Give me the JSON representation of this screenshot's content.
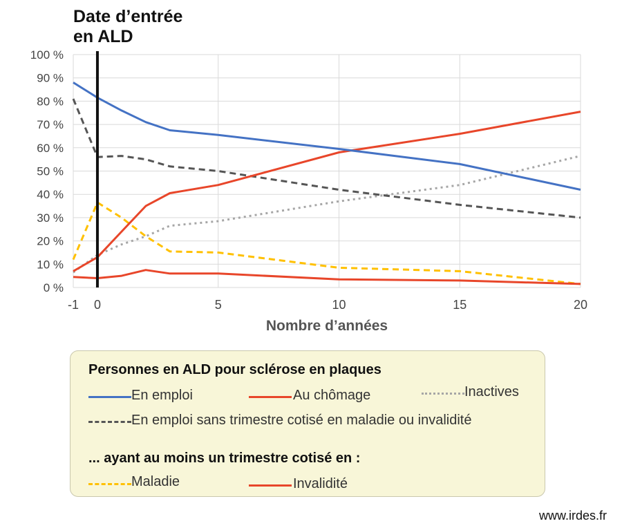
{
  "annotation": {
    "line1": "Date d’entrée",
    "line2": "en ALD"
  },
  "footer": "www.irdes.fr",
  "chart_data": {
    "type": "line",
    "xlabel": "Nombre d’années",
    "ylabel": "",
    "xlim": [
      -1,
      20
    ],
    "ylim": [
      0,
      100
    ],
    "x_ticks": [
      "-1",
      "0",
      "5",
      "10",
      "15",
      "20"
    ],
    "x_tick_values": [
      -1,
      0,
      5,
      10,
      15,
      20
    ],
    "y_ticks": [
      "0 %",
      "10 %",
      "20 %",
      "30 %",
      "40 %",
      "50 %",
      "60 %",
      "70 %",
      "80 %",
      "90 %",
      "100 %"
    ],
    "y_tick_values": [
      0,
      10,
      20,
      30,
      40,
      50,
      60,
      70,
      80,
      90,
      100
    ],
    "grid": true,
    "reference_line_x": 0,
    "legend_title": "Personnes en ALD pour sclérose en plaques",
    "legend_subtitle": "... ayant au moins un trimestre cotisé en :",
    "series": [
      {
        "name": "En emploi",
        "color": "#4472c4",
        "style": "solid",
        "x": [
          -1,
          0,
          1,
          2,
          3,
          5,
          10,
          15,
          20
        ],
        "y": [
          88,
          81.5,
          76,
          71,
          67.5,
          65.5,
          59.5,
          53,
          42
        ]
      },
      {
        "name": "Au chômage",
        "color": "#e8462a",
        "style": "solid",
        "x": [
          -1,
          0,
          1,
          2,
          3,
          5,
          10,
          15,
          20
        ],
        "y": [
          7,
          13,
          24,
          35,
          40.5,
          44,
          58,
          66,
          75.5
        ]
      },
      {
        "name": "Inactives",
        "color": "#a6a6a6",
        "style": "dotted",
        "x": [
          -1,
          0,
          1,
          2,
          3,
          5,
          10,
          15,
          20
        ],
        "y": [
          6.5,
          14,
          18.5,
          22,
          26.5,
          28.5,
          37,
          44,
          56.5
        ]
      },
      {
        "name": "En emploi sans trimestre cotisé en maladie ou invalidité",
        "color": "#555555",
        "style": "dashed",
        "x": [
          -1,
          0,
          1,
          2,
          3,
          5,
          10,
          15,
          20
        ],
        "y": [
          81,
          56,
          56.5,
          55,
          52,
          50,
          42,
          35.5,
          30
        ]
      },
      {
        "name": "Maladie",
        "color": "#ffc000",
        "style": "dashed",
        "x": [
          -1,
          0,
          1,
          2,
          3,
          5,
          10,
          15,
          20
        ],
        "y": [
          12,
          36.5,
          30,
          22,
          15.5,
          15,
          8.5,
          7,
          1.5
        ]
      },
      {
        "name": "Invalidité",
        "color": "#e8462a",
        "style": "solid",
        "x": [
          -1,
          0,
          1,
          2,
          3,
          5,
          10,
          15,
          20
        ],
        "y": [
          4.5,
          4,
          5,
          7.5,
          6,
          6,
          3.5,
          3,
          1.5
        ]
      }
    ]
  }
}
